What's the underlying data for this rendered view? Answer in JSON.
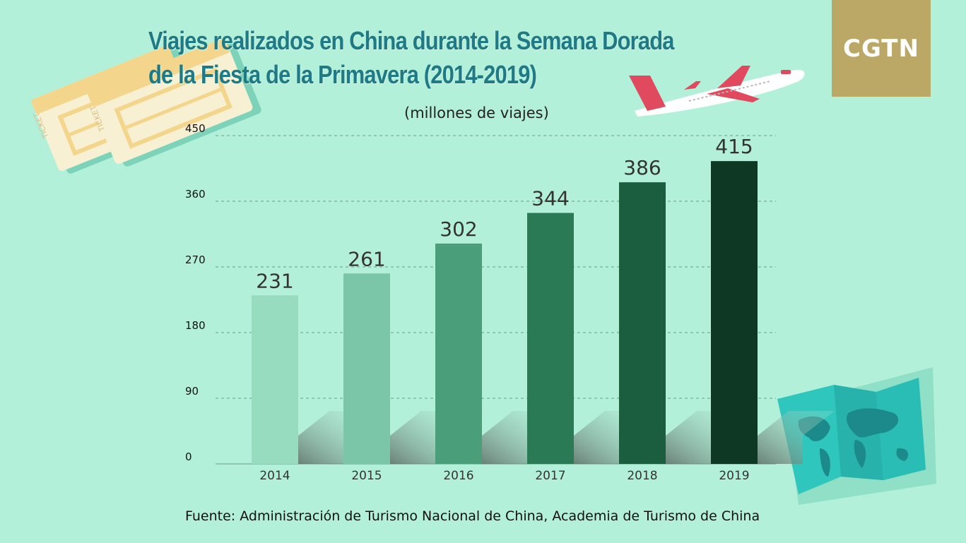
{
  "title_line1": "Viajes realizados en China durante la Semana Dorada",
  "title_line2": "de la Fiesta de la Primavera (2014-2019)",
  "unit_label": "(millones de viajes)",
  "source": "Fuente: Administración de Turismo Nacional de China, Academia de Turismo de China",
  "logo_text": "CGTN",
  "ticket_text": "TICKET",
  "colors": {
    "background": "#b3f0d9",
    "title": "#1f7a86",
    "logo_bg": "#bba866",
    "bars": [
      "#98dcc0",
      "#7bc6a8",
      "#4a9e79",
      "#2a7a56",
      "#1b5e3f",
      "#0e3823"
    ]
  },
  "chart_data": {
    "type": "bar",
    "title": "Viajes realizados en China durante la Semana Dorada de la Fiesta de la Primavera (2014-2019)",
    "ylabel": "(millones de viajes)",
    "xlabel": "",
    "categories": [
      "2014",
      "2015",
      "2016",
      "2017",
      "2018",
      "2019"
    ],
    "values": [
      231,
      261,
      302,
      344,
      386,
      415
    ],
    "data_labels": [
      "231",
      "261",
      "302",
      "344",
      "386",
      "415"
    ],
    "ylim": [
      0,
      450
    ],
    "yticks": [
      0,
      90,
      180,
      270,
      360,
      450
    ],
    "grid": true,
    "legend": "none"
  }
}
